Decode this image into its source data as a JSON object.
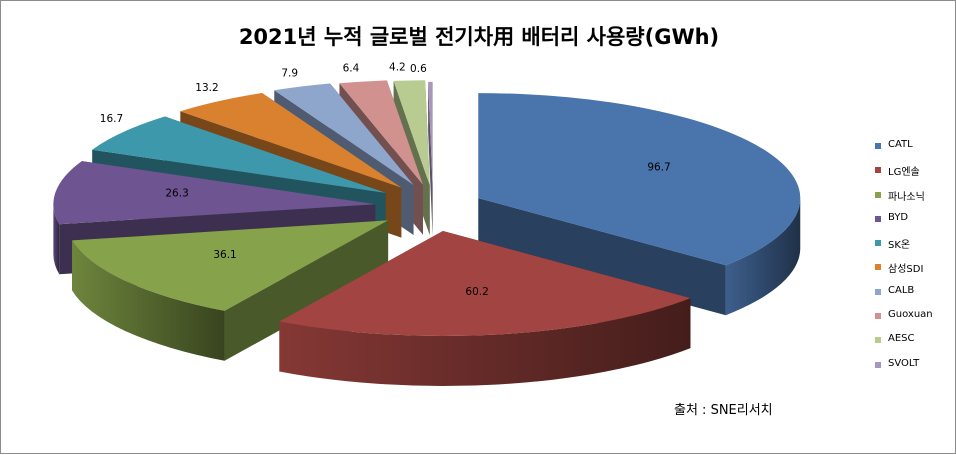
{
  "chart_data": {
    "type": "pie",
    "title": "2021년 누적 글로벌 전기차用 배터리 사용량(GWh)",
    "legend_position": "right",
    "source": "출처 : SNE리서치",
    "slices": [
      {
        "label": "CATL",
        "value": 96.7,
        "color": "#4A74AC"
      },
      {
        "label": "LG엔솔",
        "value": 60.2,
        "color": "#A24441"
      },
      {
        "label": "파나소닉",
        "value": 36.1,
        "color": "#86A24A"
      },
      {
        "label": "BYD",
        "value": 26.3,
        "color": "#6E5592"
      },
      {
        "label": "SK온",
        "value": 16.7,
        "color": "#3E98AC"
      },
      {
        "label": "삼성SDI",
        "value": 13.2,
        "color": "#D9812F"
      },
      {
        "label": "CALB",
        "value": 7.9,
        "color": "#8FA6CC"
      },
      {
        "label": "Guoxuan",
        "value": 6.4,
        "color": "#D0918F"
      },
      {
        "label": "AESC",
        "value": 4.2,
        "color": "#B8CB90"
      },
      {
        "label": "SVOLT",
        "value": 0.6,
        "color": "#A797BC"
      }
    ]
  }
}
